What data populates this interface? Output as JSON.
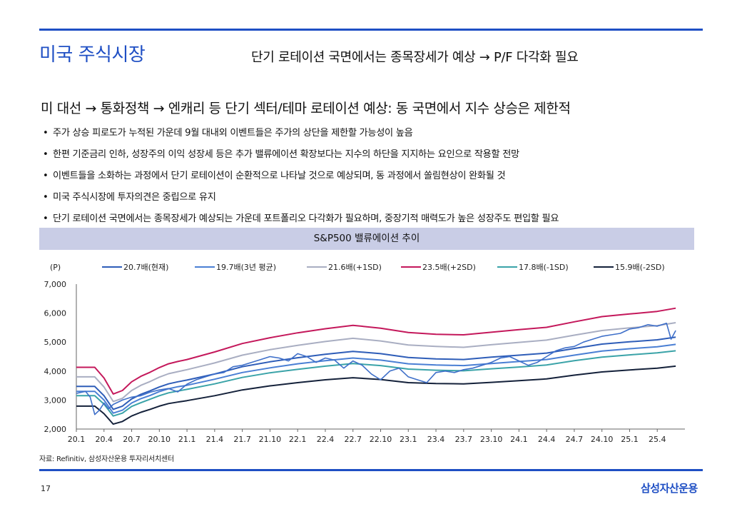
{
  "header": {
    "section_title": "미국 주식시장",
    "headline": "단기 로테이션 국면에서는 종목장세가 예상 → P/F 다각화 필요"
  },
  "subtitle": "미 대선 → 통화정책 → 엔캐리 등 단기 섹터/테마 로테이션 예상: 동 국면에서 지수 상승은 제한적",
  "bullets": [
    "주가 상승 피로도가 누적된 가운데 9월 대내외 이벤트들은 주가의 상단을 제한할 가능성이 높음",
    "한편 기준금리 인하, 성장주의 이익 성장세 등은 추가 밸류에이션 확장보다는 지수의 하단을 지지하는 요인으로 작용할 전망",
    "이벤트들을 소화하는 과정에서 단기 로테이션이 순환적으로 나타날 것으로 예상되며, 동 과정에서 쏠림현상이 완화될 것",
    "미국 주식시장에 투자의견은 중립으로 유지",
    "단기 로테이션 국면에서는 종목장세가 예상되는 가운데 포트폴리오 다각화가 필요하며, 중장기적 매력도가 높은 성장주도 편입할 필요"
  ],
  "chart_title": "S&P500 밸류에이션 추이",
  "chart_data": {
    "type": "line",
    "yunit": "(P)",
    "ylim": [
      2000,
      7000
    ],
    "yticks": [
      2000,
      3000,
      4000,
      5000,
      6000,
      7000
    ],
    "ytick_labels": [
      "2,000",
      "3,000",
      "4,000",
      "5,000",
      "6,000",
      "7,000"
    ],
    "xtick_labels": [
      "20.1",
      "20.4",
      "20.7",
      "20.10",
      "21.1",
      "21.4",
      "21.7",
      "21.10",
      "22.1",
      "22.4",
      "22.7",
      "22.10",
      "23.1",
      "23.4",
      "23.7",
      "23.10",
      "24.1",
      "24.4",
      "24.7",
      "24.10",
      "25.1",
      "25.4"
    ],
    "legend_position": "top",
    "grid": false,
    "band_months": [
      0,
      1,
      2,
      3,
      4,
      5,
      6,
      7,
      8,
      9,
      10,
      11,
      12,
      15,
      18,
      21,
      24,
      27,
      30,
      33,
      36,
      39,
      42,
      45,
      48,
      51,
      54,
      57,
      60,
      63,
      65
    ],
    "series": [
      {
        "name": "20.7배(현재)",
        "color": "#2e5db8",
        "values": [
          3470,
          3470,
          3470,
          3150,
          2680,
          2790,
          3040,
          3200,
          3320,
          3450,
          3560,
          3630,
          3690,
          3900,
          4150,
          4320,
          4460,
          4580,
          4680,
          4600,
          4470,
          4420,
          4400,
          4480,
          4550,
          4620,
          4780,
          4930,
          5010,
          5080,
          5170
        ]
      },
      {
        "name": "19.7배(3년 평균)",
        "color": "#4a7fd4",
        "values": [
          3300,
          3300,
          3300,
          3000,
          2550,
          2650,
          2900,
          3050,
          3160,
          3290,
          3390,
          3460,
          3510,
          3720,
          3950,
          4110,
          4250,
          4360,
          4450,
          4380,
          4250,
          4210,
          4190,
          4260,
          4330,
          4400,
          4550,
          4690,
          4770,
          4840,
          4920
        ]
      },
      {
        "name": "21.6배(+1SD)",
        "color": "#a9aec2",
        "values": [
          3800,
          3800,
          3800,
          3450,
          2950,
          3060,
          3330,
          3510,
          3640,
          3790,
          3910,
          3980,
          4050,
          4280,
          4550,
          4740,
          4890,
          5020,
          5130,
          5040,
          4900,
          4850,
          4820,
          4910,
          4990,
          5070,
          5240,
          5400,
          5490,
          5570,
          5670
        ]
      },
      {
        "name": "23.5배(+2SD)",
        "color": "#c4185b",
        "values": [
          4130,
          4130,
          4130,
          3760,
          3210,
          3330,
          3630,
          3820,
          3960,
          4120,
          4250,
          4330,
          4400,
          4660,
          4950,
          5150,
          5320,
          5460,
          5580,
          5480,
          5330,
          5270,
          5250,
          5340,
          5430,
          5510,
          5700,
          5880,
          5970,
          6060,
          6170
        ]
      },
      {
        "name": "17.8배(-1SD)",
        "color": "#3aa3a8",
        "values": [
          3150,
          3150,
          3150,
          2860,
          2450,
          2550,
          2780,
          2910,
          3030,
          3150,
          3250,
          3310,
          3370,
          3560,
          3780,
          3940,
          4060,
          4170,
          4260,
          4190,
          4070,
          4030,
          4010,
          4080,
          4140,
          4210,
          4360,
          4480,
          4560,
          4630,
          4700
        ]
      },
      {
        "name": "15.9배(-2SD)",
        "color": "#14213a",
        "values": [
          2790,
          2790,
          2790,
          2530,
          2170,
          2260,
          2450,
          2580,
          2680,
          2790,
          2880,
          2930,
          2980,
          3150,
          3350,
          3490,
          3600,
          3700,
          3770,
          3710,
          3600,
          3570,
          3560,
          3610,
          3670,
          3730,
          3860,
          3970,
          4040,
          4100,
          4170
        ]
      }
    ],
    "index_series": {
      "name": "S&P500",
      "color": "#3e6fc9",
      "months": [
        0,
        1,
        1.5,
        2,
        2.5,
        3,
        3.5,
        4,
        5,
        6,
        7,
        8,
        9,
        10,
        11,
        12,
        13,
        14,
        15,
        16,
        17,
        18,
        19,
        20,
        21,
        22,
        23,
        24,
        25,
        26,
        27,
        28,
        29,
        30,
        31,
        32,
        33,
        34,
        35,
        36,
        37,
        38,
        39,
        40,
        41,
        42,
        43,
        44,
        45,
        46,
        47,
        48,
        49,
        50,
        51,
        52,
        53,
        54,
        55,
        56,
        57,
        58,
        59,
        60,
        61,
        62,
        63,
        64,
        64.5,
        65
      ],
      "values": [
        3230,
        3300,
        3100,
        2500,
        2650,
        2900,
        2700,
        2850,
        3000,
        3100,
        3150,
        3270,
        3350,
        3400,
        3280,
        3550,
        3700,
        3800,
        3900,
        3950,
        4150,
        4200,
        4300,
        4400,
        4500,
        4450,
        4350,
        4600,
        4500,
        4300,
        4450,
        4380,
        4100,
        4350,
        4200,
        3900,
        3700,
        4000,
        4100,
        3800,
        3700,
        3600,
        3950,
        4000,
        3950,
        4050,
        4100,
        4200,
        4300,
        4450,
        4500,
        4350,
        4200,
        4300,
        4500,
        4700,
        4800,
        4850,
        5000,
        5100,
        5200,
        5250,
        5300,
        5450,
        5500,
        5600,
        5550,
        5650,
        5100,
        5400
      ]
    }
  },
  "source": "자료: Refinitiv, 삼성자산운용 투자리서치센터",
  "page_number": "17",
  "brand": "삼성자산운용"
}
